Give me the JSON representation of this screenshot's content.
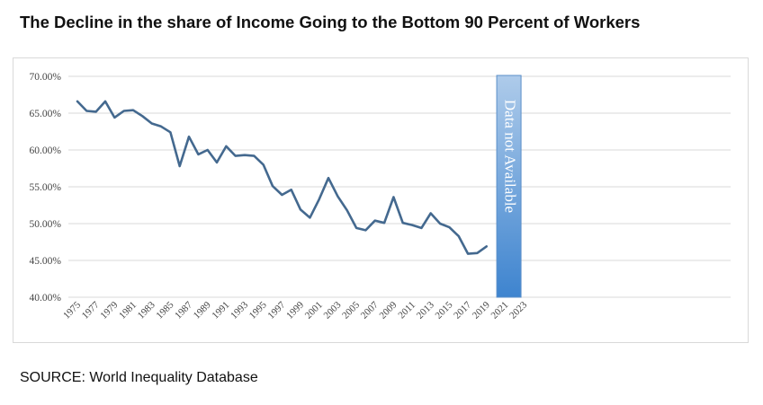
{
  "chart_data": {
    "type": "line",
    "title": "The Decline in the share of Income Going to the Bottom 90 Percent of Workers",
    "source": "SOURCE: World Inequality Database",
    "ylim": [
      0.4,
      0.7
    ],
    "xlim": [
      1975,
      2023
    ],
    "yticks": [
      "70.00%",
      "65.00%",
      "60.00%",
      "55.00%",
      "50.00%",
      "45.00%",
      "40.00%"
    ],
    "xticks": [
      "1975",
      "1977",
      "1979",
      "1981",
      "1983",
      "1985",
      "1987",
      "1989",
      "1991",
      "1993",
      "1995",
      "1997",
      "1999",
      "2001",
      "2003",
      "2005",
      "2007",
      "2009",
      "2011",
      "2013",
      "2015",
      "2017",
      "2019",
      "2021",
      "2023"
    ],
    "grid": true,
    "series": [
      {
        "color": "#44698f",
        "points": [
          [
            1975,
            0.666
          ],
          [
            1976,
            0.653
          ],
          [
            1977,
            0.652
          ],
          [
            1978,
            0.666
          ],
          [
            1979,
            0.644
          ],
          [
            1980,
            0.653
          ],
          [
            1981,
            0.654
          ],
          [
            1982,
            0.646
          ],
          [
            1983,
            0.636
          ],
          [
            1984,
            0.632
          ],
          [
            1985,
            0.624
          ],
          [
            1986,
            0.578
          ],
          [
            1987,
            0.618
          ],
          [
            1988,
            0.594
          ],
          [
            1989,
            0.6
          ],
          [
            1990,
            0.583
          ],
          [
            1991,
            0.605
          ],
          [
            1992,
            0.592
          ],
          [
            1993,
            0.593
          ],
          [
            1994,
            0.592
          ],
          [
            1995,
            0.58
          ],
          [
            1996,
            0.551
          ],
          [
            1997,
            0.539
          ],
          [
            1998,
            0.546
          ],
          [
            1999,
            0.519
          ],
          [
            2000,
            0.508
          ],
          [
            2001,
            0.533
          ],
          [
            2002,
            0.562
          ],
          [
            2003,
            0.537
          ],
          [
            2004,
            0.518
          ],
          [
            2005,
            0.494
          ],
          [
            2006,
            0.491
          ],
          [
            2007,
            0.504
          ],
          [
            2008,
            0.501
          ],
          [
            2009,
            0.536
          ],
          [
            2010,
            0.501
          ],
          [
            2011,
            0.498
          ],
          [
            2012,
            0.494
          ],
          [
            2013,
            0.514
          ],
          [
            2014,
            0.5
          ],
          [
            2015,
            0.495
          ],
          [
            2016,
            0.483
          ],
          [
            2017,
            0.459
          ],
          [
            2018,
            0.46
          ],
          [
            2019,
            0.469
          ]
        ]
      }
    ],
    "annotation": {
      "text": "Data not Available",
      "x_start": 2020,
      "x_end": 2023,
      "fill_top": "#aecbea",
      "fill_bottom": "#3e84cf",
      "text_color": "#ffffff"
    }
  }
}
